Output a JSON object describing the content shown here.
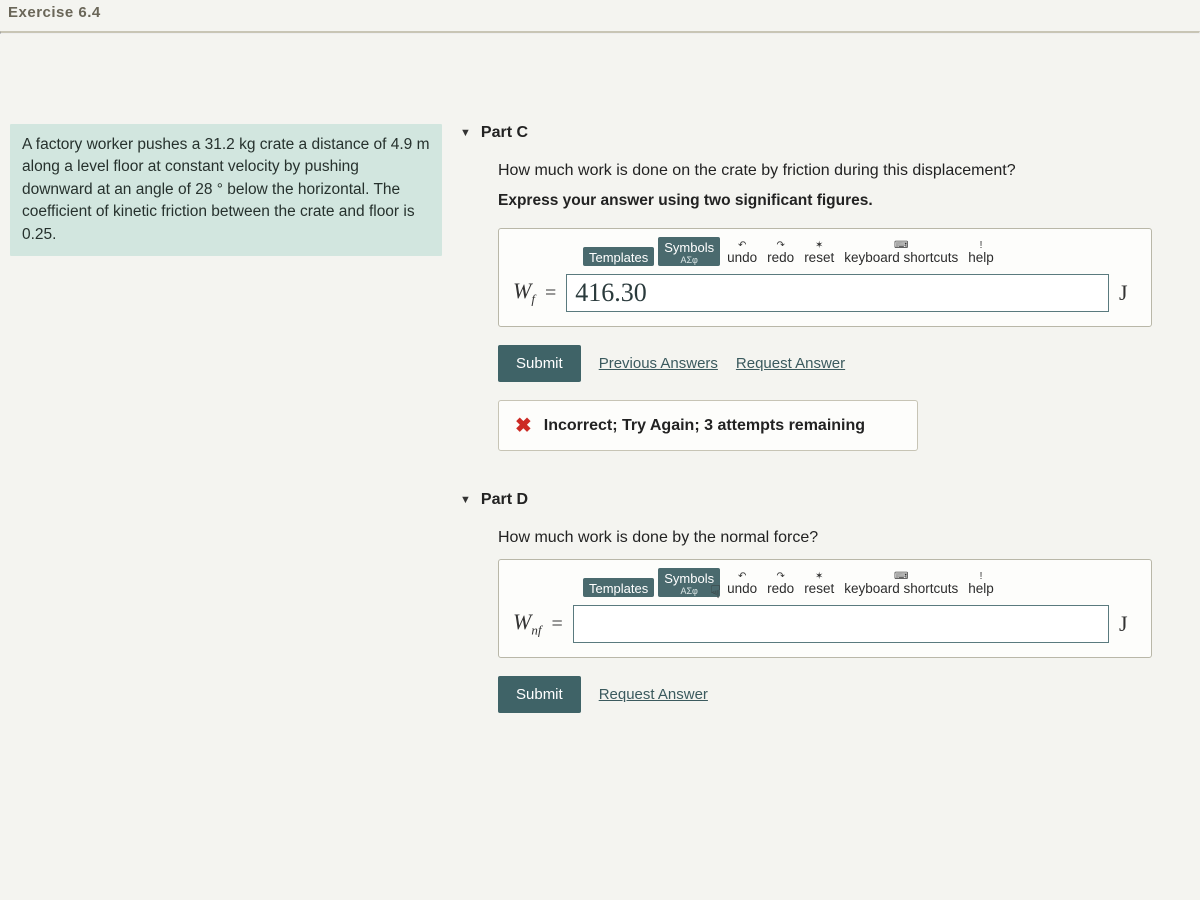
{
  "header": {
    "title": "Exercise 6.4"
  },
  "sidebar": {
    "problem_html": "A factory worker pushes a 31.2 kg crate a distance of 4.9 m along a level floor at constant velocity by pushing downward at an angle of 28 ° below the horizontal. The coefficient of kinetic friction between the crate and floor is 0.25."
  },
  "colors": {
    "panel_bg": "#d2e6df",
    "accent": "#3f6367",
    "error": "#cc2a24"
  },
  "partC": {
    "label": "Part C",
    "question": "How much work is done on the crate by friction during this displacement?",
    "instruction": "Express your answer using two significant figures.",
    "toolbar": {
      "templates": "Templates",
      "symbols": "Symbols",
      "undo": "undo",
      "redo": "redo",
      "reset": "reset",
      "keyboard": "keyboard shortcuts",
      "help": "help"
    },
    "variable": "W_f",
    "value": "416.30",
    "unit": "J",
    "submit": "Submit",
    "prev": "Previous Answers",
    "request": "Request Answer",
    "feedback": "Incorrect; Try Again; 3 attempts remaining"
  },
  "partD": {
    "label": "Part D",
    "question": "How much work is done by the normal force?",
    "toolbar": {
      "templates": "Templates",
      "symbols": "Symbols",
      "undo": "undo",
      "redo": "redo",
      "reset": "reset",
      "keyboard": "keyboard shortcuts",
      "help": "help"
    },
    "variable": "W_nf",
    "value": "",
    "unit": "J",
    "submit": "Submit",
    "request": "Request Answer"
  }
}
